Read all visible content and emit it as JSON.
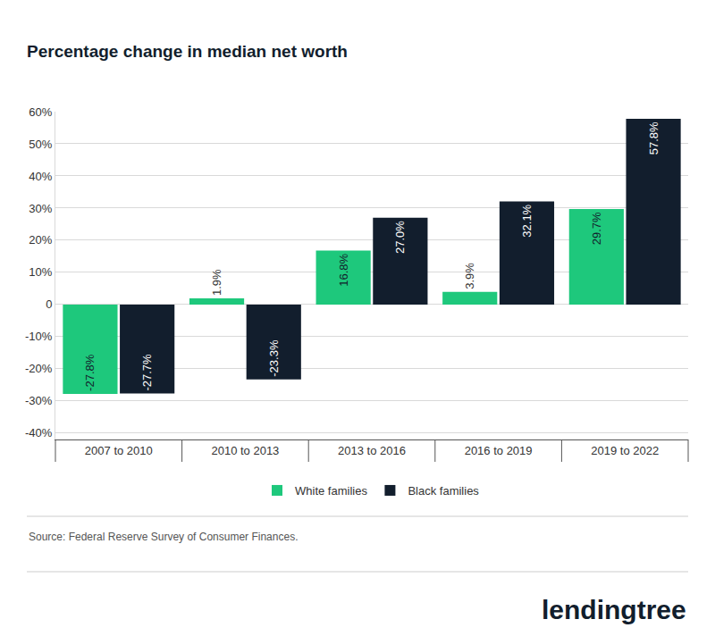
{
  "chart_data": {
    "type": "bar",
    "title": "Percentage change in median net worth",
    "categories": [
      "2007 to 2010",
      "2010 to 2013",
      "2013 to 2016",
      "2016 to 2019",
      "2019 to 2022"
    ],
    "series": [
      {
        "name": "White families",
        "color": "#1ec87c",
        "values": [
          -27.8,
          1.9,
          16.8,
          3.9,
          29.7
        ],
        "value_labels": [
          "-27.8%",
          "1.9%",
          "16.8%",
          "3.9%",
          "29.7%"
        ]
      },
      {
        "name": "Black families",
        "color": "#121e2d",
        "values": [
          -27.7,
          -23.3,
          27.0,
          32.1,
          57.8
        ],
        "value_labels": [
          "-27.7%",
          "-23.3%",
          "27.0%",
          "32.1%",
          "57.8%"
        ]
      }
    ],
    "ylim": [
      -42,
      60
    ],
    "yticks": [
      {
        "value": -40,
        "label": "-40%"
      },
      {
        "value": -30,
        "label": "-30%"
      },
      {
        "value": -20,
        "label": "-20%"
      },
      {
        "value": -10,
        "label": "-10%"
      },
      0,
      {
        "value": 10,
        "label": "10%"
      },
      {
        "value": 20,
        "label": "20%"
      },
      {
        "value": 30,
        "label": "30%"
      },
      {
        "value": 40,
        "label": "40%"
      },
      {
        "value": 50,
        "label": "50%"
      },
      {
        "value": 60,
        "label": "60%"
      }
    ],
    "grid": true,
    "data_labels": true,
    "legend": "bottom",
    "annotations": [
      "Source: Federal Reserve Survey of Consumer Finances.",
      "lendingtree"
    ]
  }
}
